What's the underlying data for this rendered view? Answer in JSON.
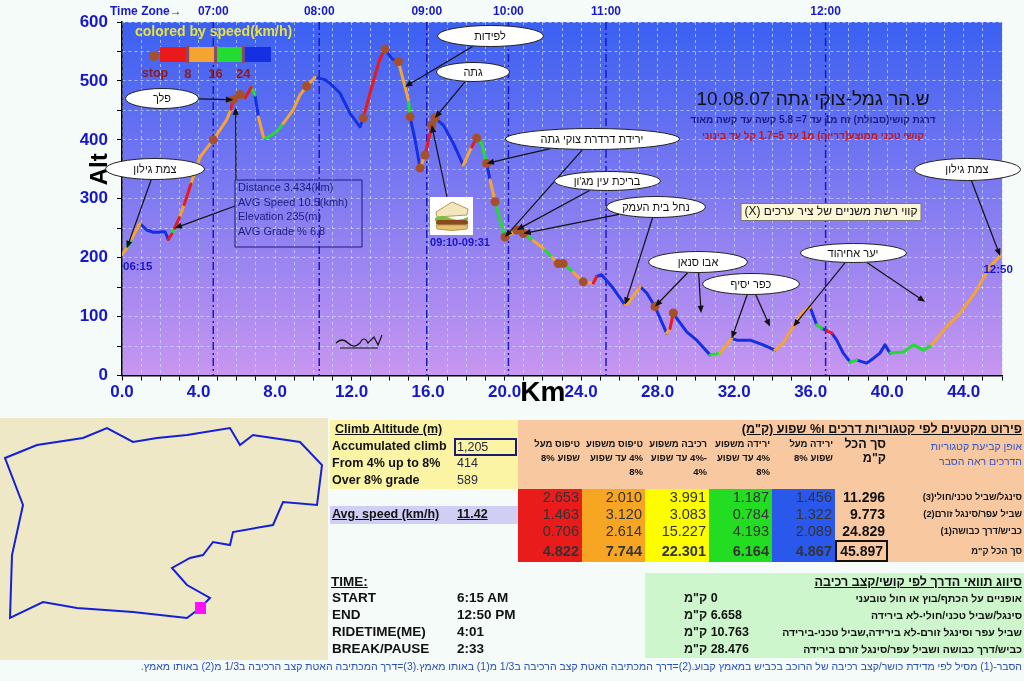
{
  "chart_data": [
    {
      "type": "line",
      "title": "ש.הר גמל-צוקי גתה 10.08.07",
      "subtitle": "דרגת קושי(סבולת) זח מ1 עד 7= 5.8 קשה עד קשה מאוד",
      "xlabel": "Km",
      "ylabel": "Alt",
      "legend_title": "colored by speed(km/h)",
      "xlim": [
        0,
        46
      ],
      "xticks": [
        {
          "value": 0,
          "label": "0.0"
        },
        {
          "value": 1,
          "label": null
        },
        {
          "value": 2,
          "label": null
        },
        {
          "value": 3,
          "label": null
        },
        {
          "value": 4,
          "label": "4.0"
        },
        {
          "value": 5,
          "label": null
        },
        {
          "value": 6,
          "label": null
        },
        {
          "value": 7,
          "label": null
        },
        {
          "value": 8,
          "label": "8.0"
        },
        {
          "value": 9,
          "label": null
        },
        {
          "value": 10,
          "label": null
        },
        {
          "value": 11,
          "label": null
        },
        {
          "value": 12,
          "label": "12.0"
        },
        {
          "value": 13,
          "label": null
        },
        {
          "value": 14,
          "label": null
        },
        {
          "value": 15,
          "label": null
        },
        {
          "value": 16,
          "label": "16.0"
        },
        {
          "value": 17,
          "label": null
        },
        {
          "value": 18,
          "label": null
        },
        {
          "value": 19,
          "label": null
        },
        {
          "value": 20,
          "label": "20.0"
        },
        {
          "value": 21,
          "label": null
        },
        {
          "value": 22,
          "label": null
        },
        {
          "value": 23,
          "label": null
        },
        {
          "value": 24,
          "label": "24.0"
        },
        {
          "value": 25,
          "label": null
        },
        {
          "value": 26,
          "label": null
        },
        {
          "value": 27,
          "label": null
        },
        {
          "value": 28,
          "label": "28.0"
        },
        {
          "value": 29,
          "label": null
        },
        {
          "value": 30,
          "label": null
        },
        {
          "value": 31,
          "label": null
        },
        {
          "value": 32,
          "label": "32.0"
        },
        {
          "value": 33,
          "label": null
        },
        {
          "value": 34,
          "label": null
        },
        {
          "value": 35,
          "label": null
        },
        {
          "value": 36,
          "label": "36.0"
        },
        {
          "value": 37,
          "label": null
        },
        {
          "value": 38,
          "label": null
        },
        {
          "value": 39,
          "label": null
        },
        {
          "value": 40,
          "label": "40.0"
        },
        {
          "value": 41,
          "label": null
        },
        {
          "value": 42,
          "label": null
        },
        {
          "value": 43,
          "label": null
        },
        {
          "value": 44,
          "label": "44.0"
        },
        {
          "value": 45,
          "label": null
        },
        {
          "value": 46,
          "label": null
        }
      ],
      "ylim": [
        0,
        600
      ],
      "yticks": [
        0,
        {
          "value": 50,
          "label": null
        },
        100,
        {
          "value": 150,
          "label": null
        },
        200,
        {
          "value": 250,
          "label": null
        },
        300,
        {
          "value": 350,
          "label": null
        },
        400,
        {
          "value": 450,
          "label": null
        },
        500,
        {
          "value": 550,
          "label": null
        },
        600
      ],
      "grid": true,
      "legend": "top left",
      "series": [
        {
          "type": "line",
          "color": "#ea1a1a",
          "x": [
            2.42,
            2.6,
            null,
            2.75,
            3.0,
            null,
            3.25,
            3.6,
            null,
            5.7,
            5.82,
            6.17,
            null,
            6.43,
            6.75,
            null,
            12.61,
            12.96,
            13.31,
            13.49,
            13.75,
            null,
            15.84,
            16.1,
            16.19,
            16.36,
            null,
            18.28,
            18.54,
            null,
            24.64,
            24.81,
            null,
            28.65,
            28.82,
            null,
            36.85,
            37.1
          ],
          "values": [
            231,
            240,
            null,
            250,
            268,
            null,
            290,
            325,
            null,
            452,
            468,
            477,
            null,
            471,
            489,
            null,
            437,
            479,
            519,
            538,
            554,
            null,
            374,
            411,
            425,
            437,
            null,
            388,
            403,
            null,
            157,
            168,
            null,
            80,
            106,
            null,
            76,
            72
          ]
        },
        {
          "type": "line",
          "color": "#f4a531",
          "x": [
            0,
            0.25,
            null,
            0.5,
            0.94,
            null,
            3.0,
            3.25,
            null,
            3.6,
            4.08,
            4.77,
            5.47,
            5.7,
            null,
            7.13,
            7.39,
            null,
            8.43,
            8.95,
            9.3,
            9.65,
            10.09,
            null,
            14.45,
            14.79,
            14.97,
            null,
            15.58,
            15.84,
            null,
            17.84,
            18.28,
            null,
            19.24,
            19.5,
            null,
            20.02,
            20.37,
            20.63,
            20.98,
            null,
            21.5,
            22.02,
            null,
            22.5,
            22.8,
            23.06,
            null,
            23.6,
            24.11,
            24.64,
            null,
            26.29,
            26.45,
            27.08,
            null,
            28.47,
            28.65,
            null,
            31.26,
            31.87,
            null,
            34.13,
            34.57,
            35.09,
            35.53,
            35.97,
            null,
            42.33,
            43.11,
            43.81,
            44.68,
            45.37,
            45.9
          ],
          "values": [
            205,
            216,
            null,
            232,
            258,
            null,
            268,
            290,
            null,
            325,
            371,
            400,
            434,
            452,
            null,
            439,
            405,
            null,
            428,
            451,
            476,
            491,
            506,
            null,
            533,
            490,
            468,
            null,
            352,
            374,
            null,
            357,
            388,
            null,
            332,
            295,
            null,
            235,
            241,
            247,
            241,
            null,
            229,
            216,
            null,
            200,
            190,
            190,
            null,
            175,
            159,
            157,
            null,
            120,
            122,
            151,
            null,
            72,
            80,
            null,
            38,
            63,
            null,
            43,
            55,
            83,
            106,
            116,
            null,
            52,
            83,
            106,
            145,
            185,
            203
          ]
        },
        {
          "type": "line",
          "color": "#23dc33",
          "x": [
            0.25,
            0.5,
            null,
            2.6,
            2.75,
            null,
            6.17,
            6.43,
            null,
            6.75,
            6.95,
            null,
            7.39,
            7.56,
            8.09,
            8.43,
            null,
            14.97,
            15.06,
            null,
            18.54,
            18.8,
            19.06,
            null,
            19.5,
            19.76,
            20.02,
            null,
            20.98,
            21.5,
            null,
            22.02,
            22.5,
            null,
            23.06,
            23.6,
            null,
            30.74,
            31.26,
            null,
            36.31,
            36.57,
            null,
            38.06,
            38.4,
            null,
            40.15,
            40.84,
            41.37,
            41.89,
            42.33
          ],
          "values": [
            216,
            232,
            null,
            240,
            250,
            null,
            477,
            471,
            null,
            489,
            476,
            null,
            405,
            403,
            414,
            428,
            null,
            468,
            439,
            null,
            403,
            394,
            360,
            null,
            295,
            264,
            235,
            null,
            241,
            229,
            null,
            216,
            200,
            null,
            190,
            175,
            null,
            35,
            38,
            null,
            86,
            80,
            null,
            23,
            26,
            null,
            38,
            40,
            52,
            43,
            52
          ]
        },
        {
          "type": "line",
          "color": "#1530e2",
          "x": [
            0.94,
            1.29,
            1.64,
            1.95,
            2.1,
            2.25,
            2.42,
            null,
            6.95,
            7.13,
            null,
            10.09,
            10.61,
            10.87,
            11.4,
            11.92,
            12.44,
            12.61,
            null,
            13.75,
            14.1,
            14.45,
            null,
            15.06,
            15.32,
            15.58,
            null,
            16.36,
            16.8,
            17.32,
            17.84,
            null,
            19.06,
            19.24,
            null,
            24.81,
            25.07,
            25.68,
            26.29,
            null,
            27.08,
            27.43,
            27.86,
            28.21,
            28.47,
            null,
            28.82,
            29.0,
            29.52,
            30.04,
            30.74,
            null,
            31.87,
            32.13,
            32.83,
            33.52,
            34.13,
            null,
            35.97,
            36.31,
            null,
            36.57,
            36.85,
            null,
            37.1,
            37.36,
            37.7,
            38.06,
            null,
            38.4,
            38.93,
            39.27,
            39.62,
            39.88,
            40.15
          ],
          "values": [
            258,
            247,
            243,
            243,
            244,
            244,
            231,
            null,
            476,
            439,
            null,
            506,
            502,
            496,
            479,
            445,
            422,
            437,
            null,
            554,
            538,
            533,
            null,
            439,
            400,
            352,
            null,
            437,
            425,
            394,
            357,
            null,
            360,
            332,
            null,
            168,
            171,
            148,
            120,
            null,
            151,
            140,
            117,
            91,
            72,
            null,
            106,
            97,
            74,
            60,
            35,
            null,
            63,
            60,
            60,
            52,
            43,
            null,
            116,
            86,
            null,
            80,
            76,
            null,
            72,
            60,
            38,
            23,
            null,
            26,
            21,
            29,
            38,
            52,
            38
          ]
        },
        {
          "type": "scatter",
          "name": "stop",
          "color": "#a5502a",
          "marker": "circle",
          "x": [
            4.77,
            5.82,
            6.17,
            9.65,
            12.61,
            13.75,
            14.45,
            15.06,
            15.58,
            15.84,
            16.19,
            16.36,
            18.54,
            19.06,
            19.5,
            20.02,
            20.63,
            20.98,
            22.8,
            23.06,
            24.11,
            27.86,
            28.82
          ],
          "values": [
            400,
            468,
            477,
            491,
            437,
            554,
            533,
            439,
            352,
            374,
            425,
            437,
            403,
            360,
            295,
            235,
            247,
            241,
            190,
            190,
            159,
            117,
            106
          ]
        }
      ],
      "ref_lines": [
        {
          "axis": "x",
          "value": 4.77,
          "color": "#1a1ac4",
          "line_style": "dashed"
        },
        {
          "axis": "x",
          "value": 10.31,
          "color": "#1a1ac4",
          "line_style": "dashed"
        },
        {
          "axis": "x",
          "value": 15.93,
          "color": "#1a1ac4",
          "line_style": "dashed"
        },
        {
          "axis": "x",
          "value": 20.2,
          "color": "#1a1ac4",
          "line_style": "dashed"
        },
        {
          "axis": "x",
          "value": 25.3,
          "color": "#1a1ac4",
          "line_style": "dashed"
        },
        {
          "axis": "x",
          "value": 36.78,
          "color": "#1a1ac4",
          "line_style": "dashed"
        }
      ],
      "annotations": [
        {
          "text": "06:15",
          "x": 0,
          "y": 205
        },
        {
          "text": "12:50",
          "x": 45.9,
          "y": 203
        },
        {
          "text": "צמת גילון",
          "x": 0.25,
          "y": 216
        },
        "פלך",
        {
          "text": "לפידות",
          "x": 14.79,
          "y": 490
        },
        {
          "text": "גתה",
          "x": 16.36,
          "y": 437
        },
        {
          "text": "ירידת דרדרת צוקי גתה",
          "x": 19.06,
          "y": 360
        },
        {
          "text": "בריכת עין מג'ון",
          "x": 20.63,
          "y": 247
        },
        {
          "text": "נחל בית העמק",
          "x": 26.29,
          "y": 120
        },
        {
          "text": "אבו סנאן",
          "x": 27.86,
          "y": 117
        },
        {
          "text": "כפר יסיף",
          "x": 31.87,
          "y": 63
        },
        {
          "text": "יער אחיהוד",
          "x": 35.09,
          "y": 83
        },
        {
          "text": "צמת גילון",
          "x": 45.9,
          "y": 203
        },
        "קווי רשת משניים של ציר ערכים (X)",
        {
          "text": "Distance 3.434(km)",
          "x": 2.75,
          "y": 250
        },
        "AVG Speed 10.5(kmh)",
        "Elevation 235(m)",
        "AVG Grade % 6.8",
        "09:10-09:31",
        "קושי טכני ממוצע(דריוה) מ1 עד 5=1.7 קל עד בינוני",
        "8",
        "16",
        "24",
        "Time Zone→",
        {
          "text": "07:00",
          "x": 4.77,
          "y": 600
        },
        {
          "text": "08:00",
          "x": 10.31,
          "y": 600
        },
        {
          "text": "09:00",
          "x": 15.93,
          "y": 600
        },
        {
          "text": "10:00",
          "x": 20.2,
          "y": 600
        },
        {
          "text": "11:00",
          "x": 25.3,
          "y": 600
        },
        {
          "text": "12:00",
          "x": 36.78,
          "y": 600
        }
      ]
    },
    {
      "type": "other",
      "title": "Climb Altitude (m)",
      "categories": [
        "Accumulated climb",
        "From 4% up to 8%",
        "Over 8% grade",
        "Avg. speed (km/h)"
      ],
      "value_labels": [
        "1,205",
        "414",
        "589",
        "11.42"
      ]
    },
    {
      "type": "other",
      "title": "TIME:",
      "categories": [
        "START",
        "END",
        "RIDETIME(ME)",
        "BREAK/PAUSE"
      ],
      "value_labels": [
        "6:15 AM",
        "12:50 PM",
        "4:01",
        "2:33"
      ]
    },
    {
      "type": "heatmap",
      "title": "פירוט מקטעים לפי קטגוריות דרכים ו% שפוע (ק\"מ)",
      "categories": [
        "טיפוס מעל שפוע 8%",
        "טיפוס משפוע 4% עד שפוע 8%",
        "רכיבה משפוע -4% עד שפוע 4%",
        "ירידה משפוע 4% עד שפוע 8%",
        "ירידה מעל שפוע 8%",
        "סך הכל ק\"מ"
      ],
      "y_categories": [
        "סינגל/שביל טכני/חולי(3)",
        "שביל עפר/סינגל זורם(2)",
        "כביש/דרך כבושה(1)",
        "סך הכל ק\"מ"
      ],
      "cells": [
        [
          2.653,
          2.01,
          3.991,
          1.187,
          1.456,
          11.296
        ],
        [
          1.463,
          3.12,
          3.083,
          0.784,
          1.322,
          9.773
        ],
        [
          0.706,
          2.614,
          15.227,
          4.193,
          2.089,
          24.829
        ],
        [
          4.822,
          7.744,
          22.301,
          6.164,
          4.867,
          45.897
        ]
      ],
      "cell_labels": [
        [
          "2.653",
          "2.010",
          "3.991",
          "1.187",
          "1.456",
          "11.296"
        ],
        [
          "1.463",
          "3.120",
          "3.083",
          "0.784",
          "1.322",
          "9.773"
        ],
        [
          "0.706",
          "2.614",
          "15.227",
          "4.193",
          "2.089",
          "24.829"
        ],
        [
          "4.822",
          "7.744",
          "22.301",
          "6.164",
          "4.867",
          "45.897"
        ]
      ],
      "annotations": [
        "אופן קביעת קטגוריות הדרכים ראה הסבר",
        "הסבר-(1) מסיל לפי מדידת כושר/קצב רכיבה של הרוכב בכביש במאמץ קבוע.(2)=דרך המכתיבה האטת קצב הרכיבה ב1/3 מ(1) באותו מאמץ.(3)=דרך המכתיבה האטת קצב הרכיבה ב1/3 מ(2) באותו מאמץ."
      ]
    },
    {
      "type": "other",
      "title": "סיווג תוואי הדרך לפי קושי/קצב רכיבה",
      "categories": [
        "אופניים על הכתף/בוץ או חול טובעני",
        "סינגל/שביל טכני/חולי-לא בירידה",
        "שביל עפר וסינגל זורם-לא בירידה,שביל טכני-בירידה",
        "כביש/דרך כבושה ושביל עפר/סינגל זורם בירידה"
      ],
      "value_labels": [
        "0 ק\"מ",
        "6.658 ק\"מ",
        "10.763 ק\"מ",
        "28.476 ק\"מ"
      ]
    }
  ]
}
